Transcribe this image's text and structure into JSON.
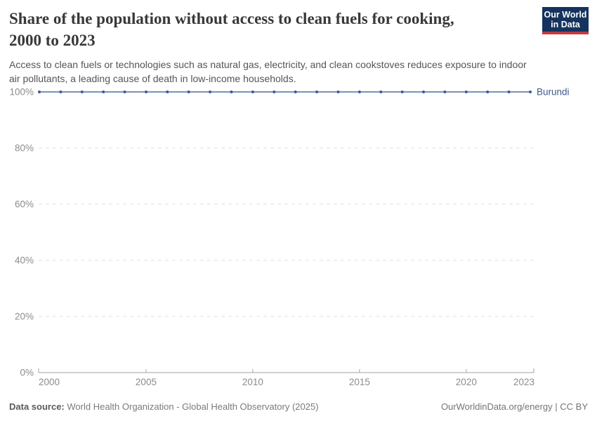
{
  "header": {
    "title_line1": "Share of the population without access to clean fuels for cooking,",
    "title_line2": "2000 to 2023",
    "subtitle": "Access to clean fuels or technologies such as natural gas, electricity, and clean cookstoves reduces exposure to indoor air pollutants, a leading cause of death in low-income households.",
    "logo": {
      "line1": "Our World",
      "line2": "in Data"
    }
  },
  "chart_data": {
    "type": "line",
    "title": "Share of the population without access to clean fuels for cooking, 2000 to 2023",
    "xlabel": "",
    "ylabel": "",
    "xlim": [
      2000,
      2023
    ],
    "ylim": [
      0,
      100
    ],
    "x_ticks": [
      2000,
      2005,
      2010,
      2015,
      2020,
      2023
    ],
    "y_ticks": [
      0,
      20,
      40,
      60,
      80,
      100
    ],
    "y_tick_suffix": "%",
    "grid": "horizontal-dashed",
    "legend_position": "end-of-line-label",
    "series": [
      {
        "name": "Burundi",
        "x": [
          2000,
          2001,
          2002,
          2003,
          2004,
          2005,
          2006,
          2007,
          2008,
          2009,
          2010,
          2011,
          2012,
          2013,
          2014,
          2015,
          2016,
          2017,
          2018,
          2019,
          2020,
          2021,
          2022,
          2023
        ],
        "values": [
          100,
          100,
          100,
          100,
          100,
          100,
          100,
          100,
          100,
          100,
          100,
          100,
          100,
          100,
          100,
          100,
          100,
          100,
          100,
          100,
          100,
          100,
          100,
          100
        ]
      }
    ]
  },
  "colors": {
    "line": "#4e6ea5",
    "marker": "#3b5b96",
    "entity_label": "#3d5a8a",
    "grid": "#e0e0e0",
    "axis": "#a3a3a3",
    "tick_label": "#8c8c8c",
    "logo_bg": "#15335e",
    "logo_stripe": "#c23b43"
  },
  "footer": {
    "datasource_label": "Data source:",
    "datasource_value": "World Health Organization - Global Health Observatory (2025)",
    "rights": "OurWorldinData.org/energy | CC BY"
  }
}
